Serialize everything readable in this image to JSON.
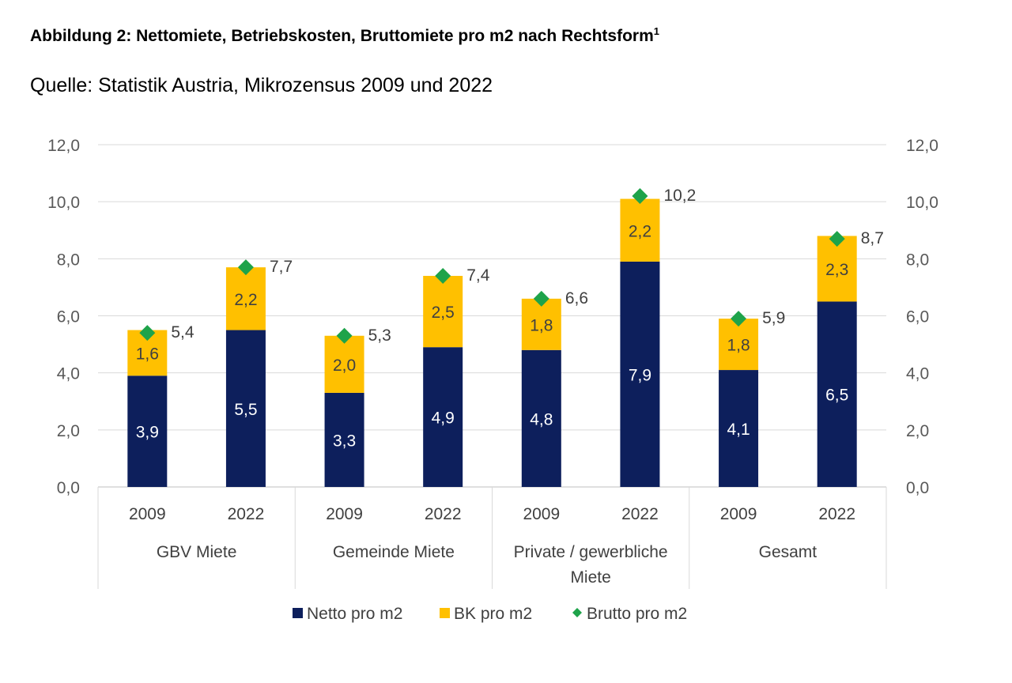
{
  "title": "Abbildung 2: Nettomiete, Betriebskosten, Bruttomiete pro m2 nach Rechtsform",
  "title_footnote": "1",
  "source": "Quelle: Statistik Austria, Mikrozensus 2009 und 2022",
  "chart_data": {
    "type": "bar",
    "stacked": true,
    "ylim": [
      0,
      12
    ],
    "y_ticks": [
      "0,0",
      "2,0",
      "4,0",
      "6,0",
      "8,0",
      "10,0",
      "12,0"
    ],
    "secondary_y_axis": true,
    "grid": true,
    "legend_position": "bottom",
    "groups": [
      {
        "label_lines": [
          "GBV Miete"
        ],
        "categories": [
          "2009",
          "2022"
        ]
      },
      {
        "label_lines": [
          "Gemeinde Miete"
        ],
        "categories": [
          "2009",
          "2022"
        ]
      },
      {
        "label_lines": [
          "Private / gewerbliche",
          "Miete"
        ],
        "categories": [
          "2009",
          "2022"
        ]
      },
      {
        "label_lines": [
          "Gesamt"
        ],
        "categories": [
          "2009",
          "2022"
        ]
      }
    ],
    "categories": [
      "2009",
      "2022",
      "2009",
      "2022",
      "2009",
      "2022",
      "2009",
      "2022"
    ],
    "series": [
      {
        "name": "Netto pro m2",
        "kind": "bar",
        "color": "#0D1F5C",
        "values": [
          3.9,
          5.5,
          3.3,
          4.9,
          4.8,
          7.9,
          4.1,
          6.5
        ],
        "labels": [
          "3,9",
          "5,5",
          "3,3",
          "4,9",
          "4,8",
          "7,9",
          "4,1",
          "6,5"
        ]
      },
      {
        "name": "BK pro m2",
        "kind": "bar",
        "color": "#FFC000",
        "values": [
          1.6,
          2.2,
          2.0,
          2.5,
          1.8,
          2.2,
          1.8,
          2.3
        ],
        "labels": [
          "1,6",
          "2,2",
          "2,0",
          "2,5",
          "1,8",
          "2,2",
          "1,8",
          "2,3"
        ]
      },
      {
        "name": "Brutto pro m2",
        "kind": "marker",
        "color": "#1EA34A",
        "values": [
          5.4,
          7.7,
          5.3,
          7.4,
          6.6,
          10.2,
          5.9,
          8.7
        ],
        "labels": [
          "5,4",
          "7,7",
          "5,3",
          "7,4",
          "6,6",
          "10,2",
          "5,9",
          "8,7"
        ]
      }
    ]
  }
}
